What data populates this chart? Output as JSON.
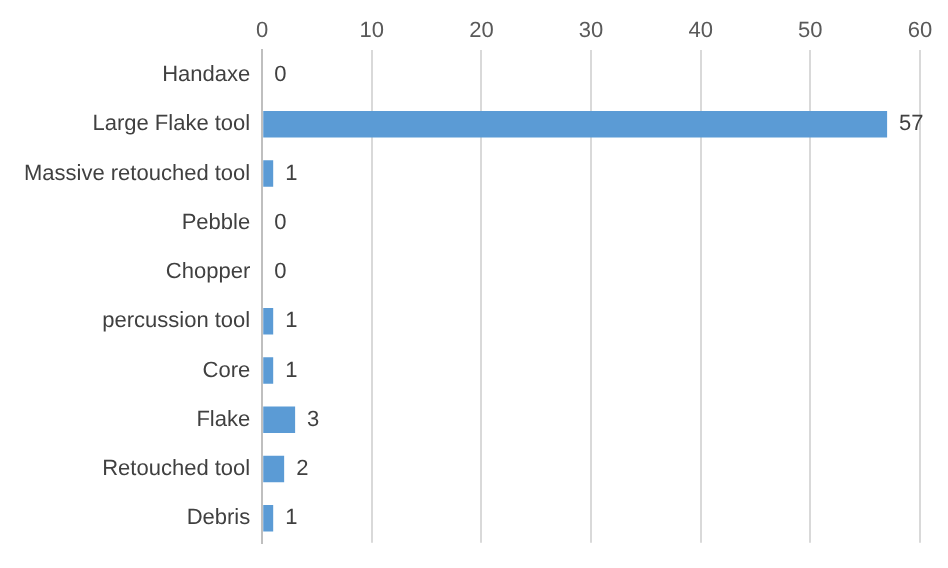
{
  "chart_data": {
    "type": "bar",
    "orientation": "horizontal",
    "categories": [
      "Handaxe",
      "Large Flake tool",
      "Massive retouched tool",
      "Pebble",
      "Chopper",
      "percussion tool",
      "Core",
      "Flake",
      "Retouched tool",
      "Debris"
    ],
    "values": [
      0,
      57,
      1,
      0,
      0,
      1,
      1,
      3,
      2,
      1
    ],
    "color": "#5b9bd5",
    "xlim": [
      0,
      60
    ],
    "xticks": [
      0,
      10,
      20,
      30,
      40,
      50,
      60
    ],
    "grid": "x",
    "data_labels": true,
    "legend": false
  }
}
